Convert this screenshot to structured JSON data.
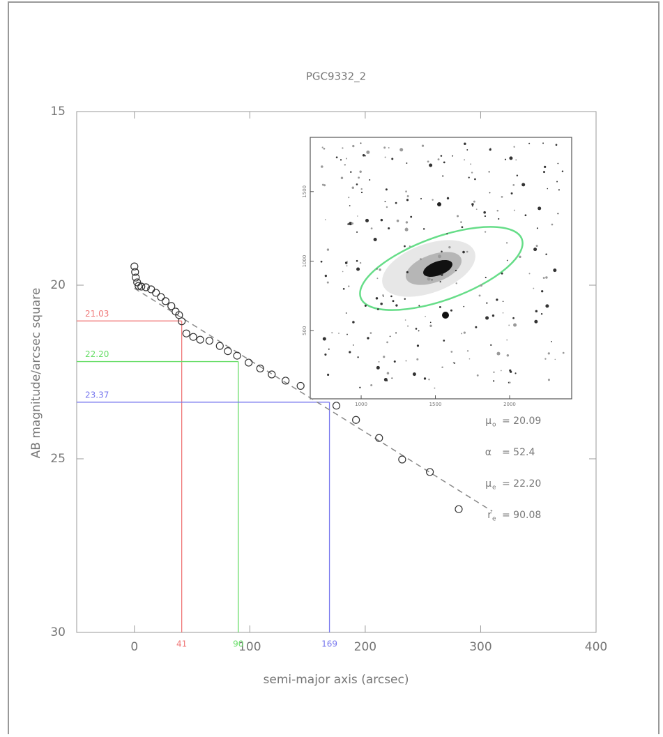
{
  "chart_data": {
    "type": "scatter",
    "title": "PGC9332_2",
    "x_label": "semi-major axis  (arcsec)",
    "y_label": "AB magnitude/arcsec square",
    "xlim": [
      -50,
      400
    ],
    "ylim": [
      30,
      15
    ],
    "xticks": [
      0,
      100,
      200,
      300,
      400
    ],
    "yticks": [
      15,
      20,
      25,
      30
    ],
    "series": [
      {
        "color": "#333333",
        "x": [
          0,
          0.6,
          1.2,
          2.4,
          3.6,
          6,
          10,
          14.5,
          18.7,
          23,
          27,
          32,
          35.7,
          38.7,
          41,
          45,
          51,
          57,
          65,
          74,
          81,
          89,
          99,
          109,
          119,
          131,
          144,
          175,
          192,
          212,
          232,
          256,
          281
        ],
        "values": [
          19.46,
          19.62,
          19.78,
          19.92,
          20.02,
          20.04,
          20.06,
          20.12,
          20.22,
          20.34,
          20.46,
          20.6,
          20.76,
          20.86,
          21.04,
          21.39,
          21.49,
          21.57,
          21.6,
          21.75,
          21.9,
          22.03,
          22.23,
          22.4,
          22.57,
          22.75,
          22.9,
          23.47,
          23.88,
          24.4,
          25.02,
          25.38,
          26.45
        ]
      }
    ],
    "fit": {
      "color": "#888888",
      "x": [
        0,
        310
      ],
      "values": [
        20.09,
        26.51
      ]
    },
    "markers": [
      {
        "color": "#f07878",
        "x": 41,
        "y": 21.03,
        "y_label": "21.03"
      },
      {
        "color": "#66dd66",
        "x": 90,
        "y": 22.2,
        "y_label": "22.20"
      },
      {
        "color": "#7777ee",
        "x": 169,
        "y": 23.37,
        "y_label": "23.37"
      }
    ],
    "annotations": [
      {
        "symbol": "μ",
        "sub": "o",
        "text": "= 20.09"
      },
      {
        "symbol": "α",
        "sub": "",
        "text": "= 52.4"
      },
      {
        "symbol": "μ",
        "sub": "e",
        "text": "= 22.20"
      },
      {
        "symbol": "r",
        "sub": "e",
        "text": "= 90.08"
      }
    ],
    "inset": {
      "xlim": [
        657,
        2418
      ],
      "ylim": [
        10,
        1890
      ],
      "xticks": [
        1000,
        1500,
        2000
      ],
      "yticks": [
        500,
        1000,
        1500
      ]
    }
  }
}
